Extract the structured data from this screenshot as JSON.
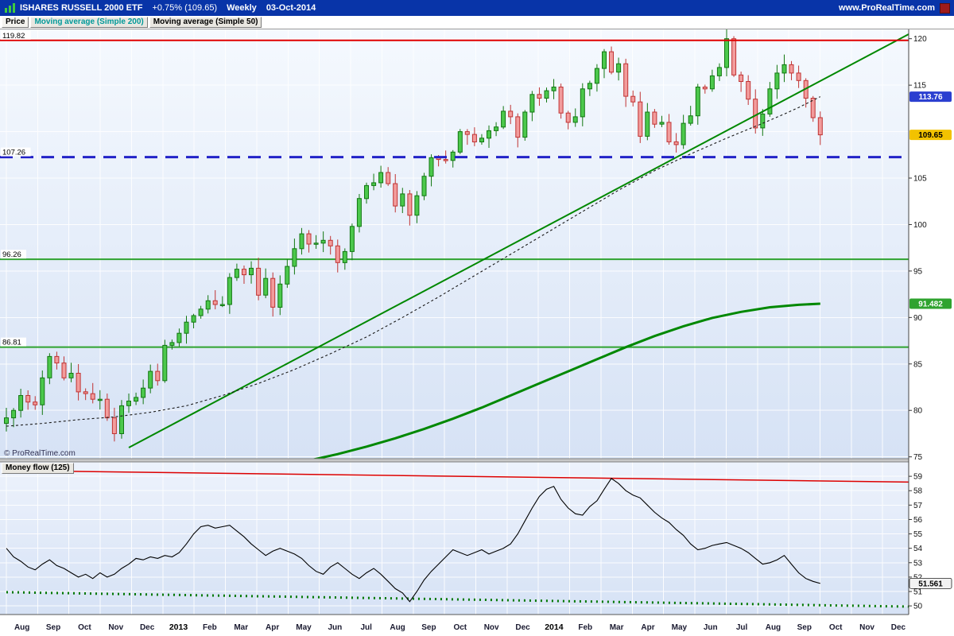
{
  "header": {
    "title": "ISHARES RUSSELL 2000 ETF",
    "change": "+0.75% (109.65)",
    "timeframe": "Weekly",
    "date": "03-Oct-2014",
    "site": "www.ProRealTime.com",
    "bg_color": "#0834A8"
  },
  "legend": {
    "price_label": "Price",
    "ma200_label": "Moving average (Simple 200)",
    "ma50_label": "Moving average (Simple 50)"
  },
  "money_flow_label": "Money flow (125)",
  "watermark": "© ProRealTime.com",
  "chart_data": {
    "type": "candlestick",
    "title": "ISHARES RUSSELL 2000 ETF Weekly with SMA200, SMA50 and Money flow (125)",
    "last_bar_date": "03-Oct-2014",
    "x_axis": {
      "months": [
        "Aug",
        "Sep",
        "Oct",
        "Nov",
        "Dec",
        "2013",
        "Feb",
        "Mar",
        "Apr",
        "May",
        "Jun",
        "Jul",
        "Aug",
        "Sep",
        "Oct",
        "Nov",
        "Dec",
        "2014",
        "Feb",
        "Mar",
        "Apr",
        "May",
        "Jun",
        "Jul",
        "Aug",
        "Sep",
        "Oct",
        "Nov",
        "Dec"
      ],
      "weeks_per_month": 4.345
    },
    "main_panel": {
      "y_ticks": [
        120,
        115,
        105,
        100,
        95,
        90,
        85,
        80,
        75
      ],
      "y_range": [
        74.8,
        121.0
      ],
      "grid_step": 5,
      "levels": [
        {
          "value": 119.82,
          "label": "119.82",
          "color": "#E00000",
          "style": "solid",
          "width": 2,
          "name": "resistance-line"
        },
        {
          "value": 107.26,
          "label": "107.26",
          "color": "#2222C8",
          "style": "dashed",
          "width": 3,
          "name": "support-dashed-line"
        },
        {
          "value": 96.26,
          "label": "96.26",
          "color": "#2FA32F",
          "style": "solid",
          "width": 2,
          "name": "green-level-9626"
        },
        {
          "value": 86.81,
          "label": "86.81",
          "color": "#2FA32F",
          "style": "solid",
          "width": 2,
          "name": "green-level-8681"
        }
      ],
      "badges": [
        {
          "value": 113.76,
          "label": "113.76",
          "bg": "#2B3FD0",
          "fg": "#FFFFFF",
          "series": "sma50"
        },
        {
          "value": 109.65,
          "label": "109.65",
          "bg": "#F2C200",
          "fg": "#000000",
          "series": "price"
        },
        {
          "value": 91.482,
          "label": "91.482",
          "bg": "#2FA32F",
          "fg": "#FFFFFF",
          "series": "sma200"
        }
      ],
      "candles": {
        "up_fill": "#4CC84C",
        "up_stroke": "#117711",
        "down_fill": "#F29C9C",
        "down_stroke": "#C03333",
        "start_open": 78.6,
        "closes": [
          79.2,
          80.0,
          81.6,
          80.9,
          80.6,
          83.5,
          85.8,
          85.1,
          83.5,
          84.0,
          82.0,
          81.8,
          81.2,
          81.2,
          79.2,
          77.5,
          80.5,
          81.0,
          81.4,
          82.4,
          84.2,
          83.2,
          87.0,
          87.3,
          88.3,
          89.5,
          90.2,
          90.9,
          91.8,
          91.4,
          91.4,
          94.3,
          95.2,
          94.6,
          95.3,
          92.4,
          94.2,
          91.1,
          93.6,
          95.5,
          97.4,
          99.0,
          97.9,
          98.0,
          98.3,
          97.7,
          95.9,
          97.1,
          99.8,
          102.8,
          104.2,
          104.5,
          105.6,
          104.4,
          102.0,
          103.3,
          101.0,
          103.1,
          105.2,
          107.2,
          107.0,
          106.9,
          107.8,
          110.0,
          109.7,
          108.9,
          109.3,
          110.1,
          110.5,
          112.2,
          111.6,
          109.4,
          112.1,
          114.0,
          113.6,
          114.4,
          114.8,
          112.0,
          111.0,
          111.6,
          114.6,
          115.2,
          116.8,
          118.6,
          116.4,
          117.3,
          113.8,
          113.2,
          109.5,
          112.1,
          110.8,
          111.0,
          108.9,
          108.6,
          110.9,
          111.7,
          114.8,
          114.6,
          116.0,
          116.9,
          120.0,
          116.1,
          115.4,
          113.5,
          110.4,
          111.9,
          114.6,
          116.3,
          117.2,
          116.3,
          115.5,
          113.6,
          111.5,
          109.65
        ]
      },
      "sma50": {
        "color": "#1A1A1A",
        "style": "dashed",
        "last_value": 113.76,
        "points": [
          [
            0,
            78.3
          ],
          [
            5,
            78.6
          ],
          [
            10,
            79.0
          ],
          [
            15,
            79.3
          ],
          [
            20,
            79.8
          ],
          [
            25,
            80.5
          ],
          [
            30,
            81.6
          ],
          [
            35,
            82.9
          ],
          [
            40,
            84.4
          ],
          [
            45,
            86.1
          ],
          [
            50,
            87.9
          ],
          [
            55,
            90.0
          ],
          [
            60,
            92.2
          ],
          [
            65,
            94.5
          ],
          [
            70,
            96.8
          ],
          [
            75,
            99.1
          ],
          [
            80,
            101.4
          ],
          [
            85,
            103.7
          ],
          [
            90,
            105.8
          ],
          [
            95,
            107.6
          ],
          [
            100,
            109.3
          ],
          [
            105,
            110.9
          ],
          [
            108,
            111.9
          ],
          [
            110,
            112.6
          ],
          [
            113,
            113.76
          ]
        ]
      },
      "sma200": {
        "color": "#008800",
        "width": 3,
        "last_value": 91.482,
        "points": [
          [
            42,
            74.6
          ],
          [
            46,
            75.3
          ],
          [
            50,
            76.1
          ],
          [
            54,
            77.0
          ],
          [
            58,
            78.0
          ],
          [
            62,
            79.1
          ],
          [
            66,
            80.3
          ],
          [
            70,
            81.6
          ],
          [
            74,
            82.9
          ],
          [
            78,
            84.2
          ],
          [
            82,
            85.5
          ],
          [
            86,
            86.8
          ],
          [
            90,
            88.0
          ],
          [
            94,
            89.05
          ],
          [
            98,
            89.95
          ],
          [
            102,
            90.6
          ],
          [
            106,
            91.1
          ],
          [
            110,
            91.36
          ],
          [
            113,
            91.482
          ]
        ]
      },
      "trendline": {
        "from": [
          17,
          76.0
        ],
        "to": [
          125.3,
          120.5
        ],
        "color": "#008800",
        "width": 2
      }
    },
    "money_flow": {
      "indicator": "Money flow (125)",
      "y_ticks": [
        59,
        58,
        57,
        56,
        55,
        54,
        53,
        52,
        51,
        50
      ],
      "y_range": [
        49.4,
        60.0
      ],
      "badge": {
        "value": 51.561,
        "label": "51.561",
        "bg": "#F2F2F2",
        "fg": "#000000"
      },
      "upper_line": {
        "from": [
          0,
          59.4
        ],
        "to": [
          125.3,
          58.6
        ],
        "color": "#DD0000",
        "width": 1.5
      },
      "lower_line": {
        "from": [
          0,
          50.95
        ],
        "to": [
          125.3,
          49.95
        ],
        "color": "#007700",
        "style": "dotted",
        "width": 3
      },
      "series": {
        "color": "#000000",
        "points": [
          [
            0,
            54.0
          ],
          [
            1,
            53.4
          ],
          [
            2,
            53.1
          ],
          [
            3,
            52.7
          ],
          [
            4,
            52.5
          ],
          [
            5,
            52.9
          ],
          [
            6,
            53.2
          ],
          [
            7,
            52.8
          ],
          [
            8,
            52.6
          ],
          [
            9,
            52.3
          ],
          [
            10,
            52.0
          ],
          [
            11,
            52.2
          ],
          [
            12,
            51.9
          ],
          [
            13,
            52.3
          ],
          [
            14,
            52.0
          ],
          [
            15,
            52.2
          ],
          [
            16,
            52.6
          ],
          [
            17,
            52.9
          ],
          [
            18,
            53.3
          ],
          [
            19,
            53.2
          ],
          [
            20,
            53.4
          ],
          [
            21,
            53.3
          ],
          [
            22,
            53.5
          ],
          [
            23,
            53.4
          ],
          [
            24,
            53.7
          ],
          [
            25,
            54.3
          ],
          [
            26,
            55.0
          ],
          [
            27,
            55.5
          ],
          [
            28,
            55.6
          ],
          [
            29,
            55.4
          ],
          [
            30,
            55.5
          ],
          [
            31,
            55.6
          ],
          [
            32,
            55.2
          ],
          [
            33,
            54.8
          ],
          [
            34,
            54.3
          ],
          [
            35,
            53.9
          ],
          [
            36,
            53.5
          ],
          [
            37,
            53.8
          ],
          [
            38,
            54.0
          ],
          [
            39,
            53.8
          ],
          [
            40,
            53.6
          ],
          [
            41,
            53.3
          ],
          [
            42,
            52.8
          ],
          [
            43,
            52.4
          ],
          [
            44,
            52.2
          ],
          [
            45,
            52.7
          ],
          [
            46,
            53.0
          ],
          [
            47,
            52.6
          ],
          [
            48,
            52.2
          ],
          [
            49,
            51.9
          ],
          [
            50,
            52.3
          ],
          [
            51,
            52.6
          ],
          [
            52,
            52.2
          ],
          [
            53,
            51.7
          ],
          [
            54,
            51.2
          ],
          [
            55,
            50.9
          ],
          [
            56,
            50.3
          ],
          [
            57,
            51.0
          ],
          [
            58,
            51.8
          ],
          [
            59,
            52.4
          ],
          [
            60,
            52.9
          ],
          [
            61,
            53.4
          ],
          [
            62,
            53.9
          ],
          [
            63,
            53.7
          ],
          [
            64,
            53.5
          ],
          [
            65,
            53.7
          ],
          [
            66,
            53.9
          ],
          [
            67,
            53.6
          ],
          [
            68,
            53.8
          ],
          [
            69,
            54.0
          ],
          [
            70,
            54.3
          ],
          [
            71,
            55.0
          ],
          [
            72,
            55.9
          ],
          [
            73,
            56.8
          ],
          [
            74,
            57.6
          ],
          [
            75,
            58.1
          ],
          [
            76,
            58.3
          ],
          [
            77,
            57.4
          ],
          [
            78,
            56.8
          ],
          [
            79,
            56.4
          ],
          [
            80,
            56.3
          ],
          [
            81,
            56.9
          ],
          [
            82,
            57.3
          ],
          [
            83,
            58.1
          ],
          [
            84,
            58.85
          ],
          [
            85,
            58.5
          ],
          [
            86,
            58.0
          ],
          [
            87,
            57.7
          ],
          [
            88,
            57.5
          ],
          [
            89,
            57.0
          ],
          [
            90,
            56.5
          ],
          [
            91,
            56.1
          ],
          [
            92,
            55.8
          ],
          [
            93,
            55.3
          ],
          [
            94,
            54.9
          ],
          [
            95,
            54.3
          ],
          [
            96,
            53.9
          ],
          [
            97,
            54.0
          ],
          [
            98,
            54.2
          ],
          [
            99,
            54.3
          ],
          [
            100,
            54.4
          ],
          [
            101,
            54.2
          ],
          [
            102,
            54.0
          ],
          [
            103,
            53.7
          ],
          [
            104,
            53.3
          ],
          [
            105,
            52.9
          ],
          [
            106,
            53.0
          ],
          [
            107,
            53.2
          ],
          [
            108,
            53.5
          ],
          [
            109,
            52.9
          ],
          [
            110,
            52.3
          ],
          [
            111,
            51.9
          ],
          [
            112,
            51.7
          ],
          [
            113,
            51.561
          ]
        ]
      }
    }
  }
}
